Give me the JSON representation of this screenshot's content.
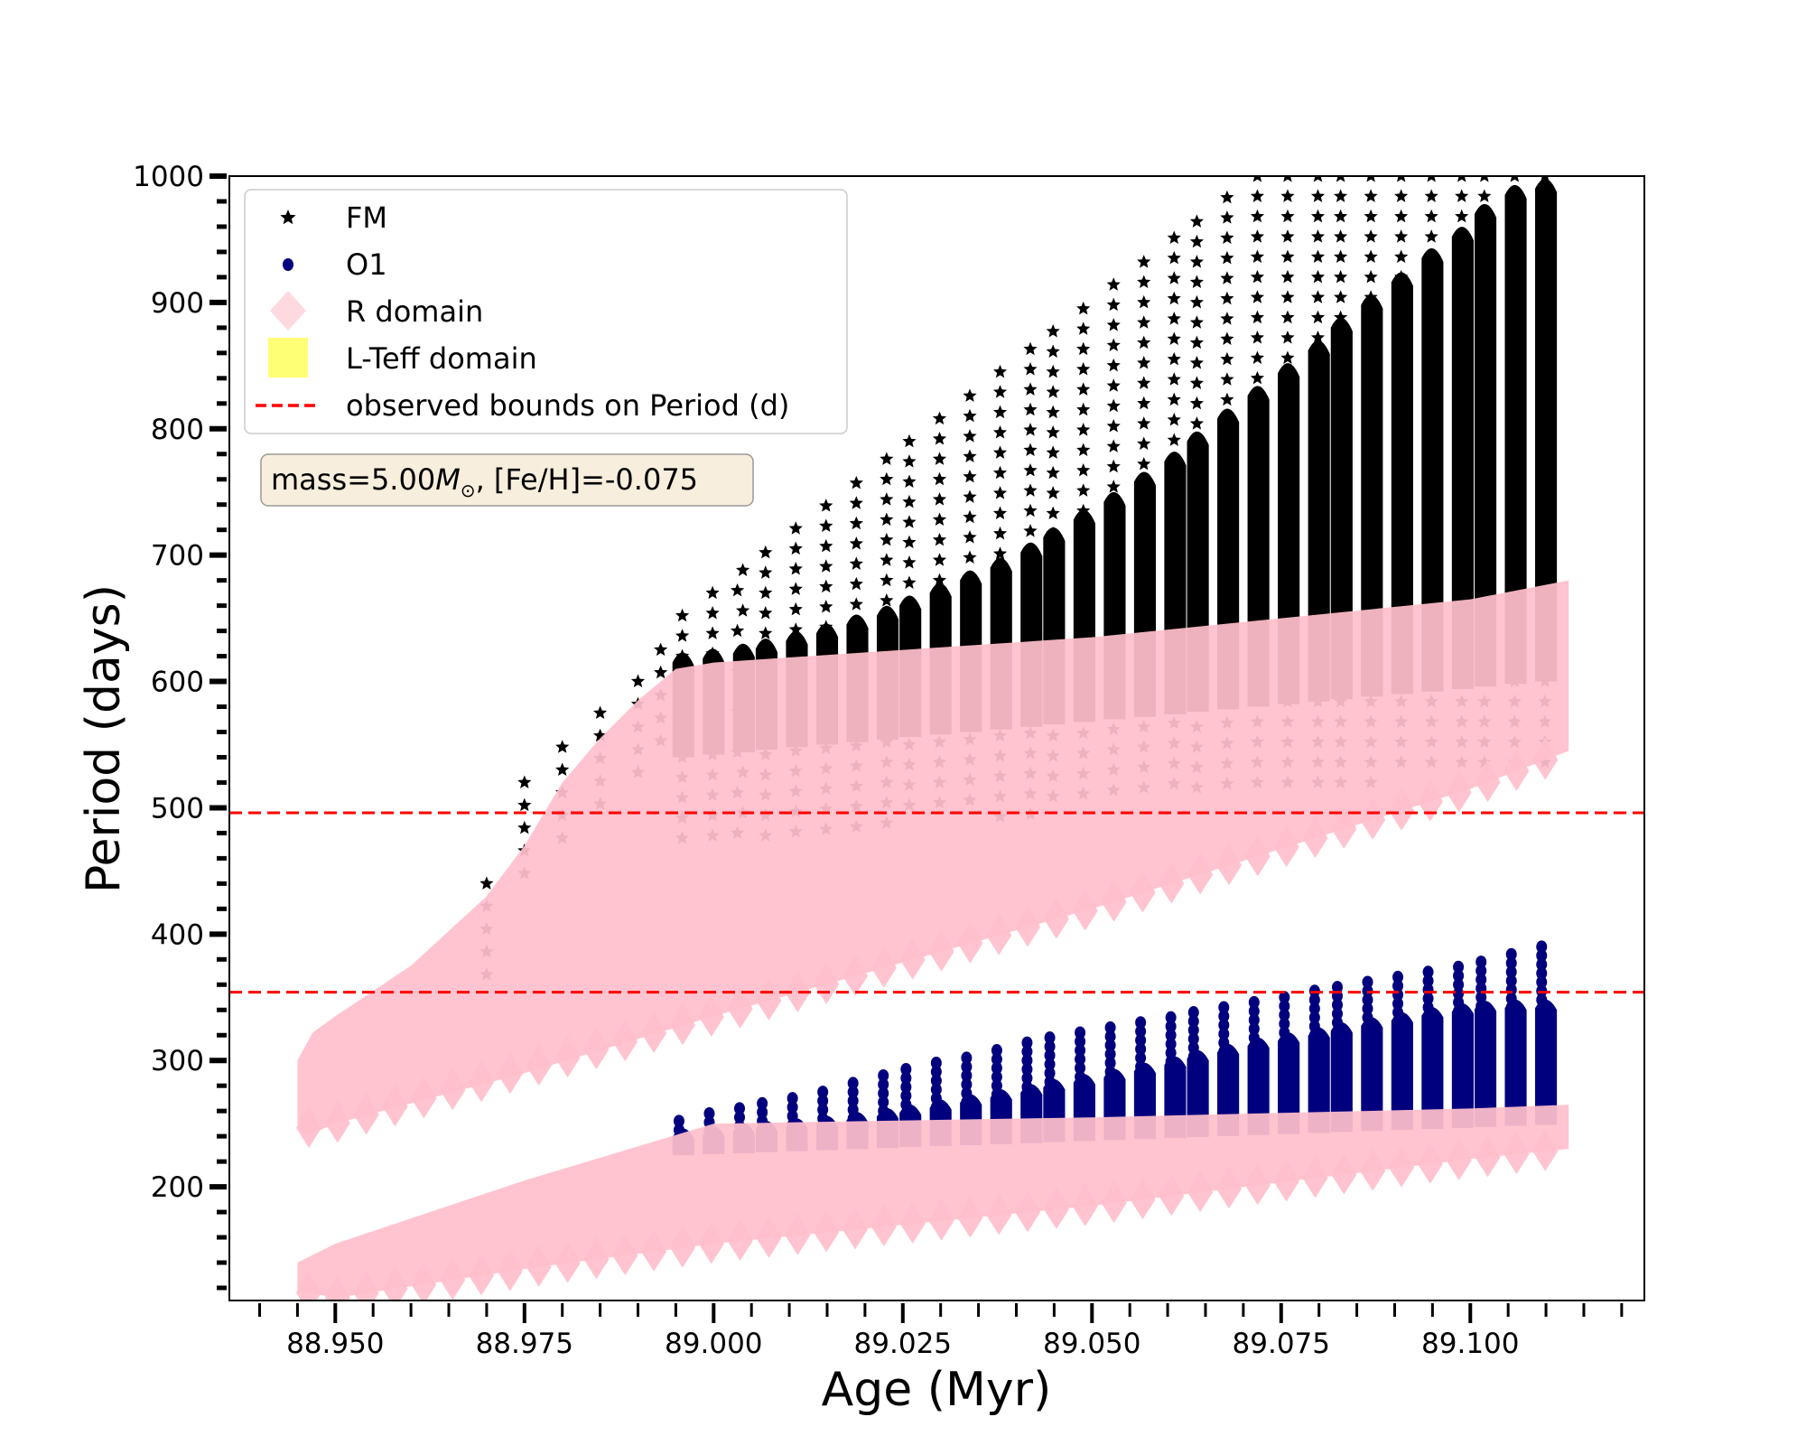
{
  "chart_data": {
    "type": "scatter",
    "title": "",
    "xlabel": "Age (Myr)",
    "ylabel": "Period (days)",
    "xlim": [
      88.936,
      89.123
    ],
    "ylim": [
      110,
      1000
    ],
    "grid": false,
    "x_ticks": [
      "88.950",
      "88.975",
      "89.000",
      "89.025",
      "89.050",
      "89.075",
      "89.100"
    ],
    "x_tick_values": [
      88.95,
      88.975,
      89.0,
      89.025,
      89.05,
      89.075,
      89.1
    ],
    "y_ticks": [
      "200",
      "300",
      "400",
      "500",
      "600",
      "700",
      "800",
      "900",
      "1000"
    ],
    "y_tick_values": [
      200,
      300,
      400,
      500,
      600,
      700,
      800,
      900,
      1000
    ],
    "legend": {
      "placement": "top-left",
      "entries": [
        {
          "label": "FM",
          "marker": "star",
          "color": "#000000"
        },
        {
          "label": "O1",
          "marker": "circle",
          "color": "#00007f"
        },
        {
          "label": "R domain",
          "marker": "diamond",
          "color": "#ffc0cb"
        },
        {
          "label": "L-Teff domain",
          "marker": "square",
          "color": "#ffff66"
        },
        {
          "label": "observed bounds on Period (d)",
          "marker": "dashed-line",
          "color": "#ff0000"
        }
      ]
    },
    "annotation": {
      "prefix": "mass=5.00",
      "symbol": "M",
      "subscript": "⊙",
      "suffix": ", [Fe/H]=-0.075"
    },
    "observed_bounds": [
      496,
      354
    ],
    "loop_ages": [
      88.996,
      89.0,
      89.004,
      89.007,
      89.011,
      89.015,
      89.019,
      89.023,
      89.026,
      89.03,
      89.034,
      89.038,
      89.042,
      89.045,
      89.049,
      89.053,
      89.057,
      89.061,
      89.064,
      89.068,
      89.072,
      89.076,
      89.08,
      89.083,
      89.087,
      89.091,
      89.095,
      89.099,
      89.102,
      89.106,
      89.11
    ],
    "series": [
      {
        "name": "FM",
        "loop_body_top": [
          625,
          628,
          632,
          636,
          642,
          648,
          655,
          662,
          670,
          680,
          690,
          700,
          712,
          724,
          738,
          752,
          768,
          784,
          800,
          818,
          836,
          854,
          872,
          890,
          908,
          926,
          945,
          962,
          980,
          995,
          1000
        ],
        "sparse_column_top": [
          652,
          670,
          688,
          702,
          721,
          739,
          757,
          776,
          790,
          808,
          826,
          845,
          863,
          877,
          895,
          914,
          932,
          951,
          964,
          983,
          1000,
          1000,
          1000,
          1000,
          1000,
          1000,
          1000,
          1000,
          1000,
          1000,
          1000
        ],
        "early_columns": [
          [
            88.97,
            440
          ],
          [
            88.975,
            520
          ],
          [
            88.98,
            548
          ],
          [
            88.985,
            575
          ],
          [
            88.99,
            600
          ],
          [
            88.993,
            625
          ]
        ]
      },
      {
        "name": "O1",
        "loop_body_top": [
          248,
          250,
          252,
          254,
          256,
          258,
          261,
          264,
          267,
          271,
          275,
          279,
          283,
          287,
          291,
          295,
          300,
          305,
          310,
          315,
          320,
          324,
          328,
          332,
          336,
          340,
          344,
          347,
          349,
          350,
          350
        ],
        "sparse_column_top": [
          252,
          258,
          262,
          266,
          270,
          275,
          282,
          288,
          293,
          298,
          302,
          308,
          314,
          318,
          322,
          326,
          330,
          334,
          338,
          342,
          346,
          350,
          355,
          358,
          362,
          366,
          370,
          374,
          378,
          384,
          390
        ]
      },
      {
        "name": "R domain",
        "bands": [
          [
            [
              88.945,
              300
            ],
            [
              88.947,
              322
            ],
            [
              88.95,
              335
            ],
            [
              88.96,
              375
            ],
            [
              88.97,
              430
            ],
            [
              88.975,
              470
            ],
            [
              88.98,
              520
            ],
            [
              88.985,
              555
            ],
            [
              88.99,
              585
            ],
            [
              88.995,
              610
            ],
            [
              89.0,
              615
            ],
            [
              89.05,
              635
            ],
            [
              89.1,
              665
            ],
            [
              89.113,
              680
            ],
            [
              89.113,
              545
            ],
            [
              89.1,
              515
            ],
            [
              89.05,
              420
            ],
            [
              89.0,
              335
            ],
            [
              88.975,
              290
            ],
            [
              88.95,
              250
            ],
            [
              88.946,
              240
            ],
            [
              88.945,
              250
            ]
          ],
          [
            [
              88.945,
              140
            ],
            [
              88.95,
              155
            ],
            [
              88.975,
              205
            ],
            [
              89.0,
              250
            ],
            [
              89.05,
              255
            ],
            [
              89.1,
              262
            ],
            [
              89.113,
              265
            ],
            [
              89.113,
              230
            ],
            [
              89.1,
              222
            ],
            [
              89.05,
              185
            ],
            [
              89.0,
              155
            ],
            [
              88.975,
              135
            ],
            [
              88.95,
              112
            ],
            [
              88.945,
              118
            ]
          ]
        ]
      }
    ]
  },
  "colors": {
    "fm": "#000000",
    "o1": "#00007f",
    "r_domain": "#ffc0cb",
    "lteff": "#ffff66",
    "bounds": "#ff0000",
    "annotation_bg": "#f8eedd"
  }
}
